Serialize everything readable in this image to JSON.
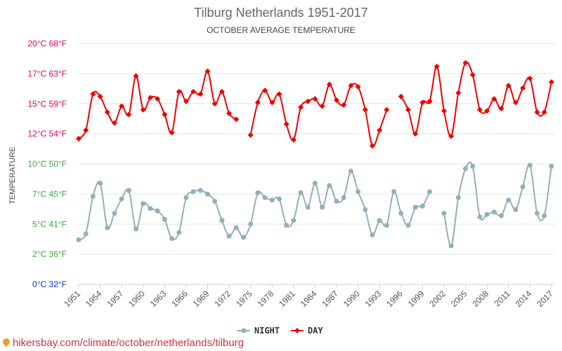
{
  "title": "Tilburg Netherlands 1951-2017",
  "subtitle": "OCTOBER AVERAGE TEMPERATURE",
  "footer": "hikersbay.com/climate/october/netherlands/tilburg",
  "chart_data": {
    "type": "line",
    "title": "Tilburg Netherlands 1951-2017",
    "subtitle": "OCTOBER AVERAGE TEMPERATURE",
    "ylabel": "TEMPERATURE",
    "xlim": [
      1951,
      2017
    ],
    "ylim": [
      0,
      20
    ],
    "grid": true,
    "legend_position": "bottom",
    "y_ticks": [
      {
        "value": 0,
        "label": "0°C 32°F",
        "color": "#0033cc"
      },
      {
        "value": 2.5,
        "label": "2°C 36°F",
        "color": "#33aa33"
      },
      {
        "value": 5,
        "label": "5°C 41°F",
        "color": "#33aa33"
      },
      {
        "value": 7.5,
        "label": "7°C 45°F",
        "color": "#33aa33"
      },
      {
        "value": 10,
        "label": "10°C 50°F",
        "color": "#33aa33"
      },
      {
        "value": 12.5,
        "label": "12°C 54°F",
        "color": "#dd0055"
      },
      {
        "value": 15,
        "label": "15°C 59°F",
        "color": "#dd0055"
      },
      {
        "value": 17.5,
        "label": "17°C 63°F",
        "color": "#dd0055"
      },
      {
        "value": 20,
        "label": "20°C 68°F",
        "color": "#dd0055"
      }
    ],
    "x_ticks": [
      "1951",
      "1954",
      "1957",
      "1960",
      "1963",
      "1966",
      "1969",
      "1972",
      "1975",
      "1978",
      "1981",
      "1984",
      "1987",
      "1990",
      "1993",
      "1996",
      "1999",
      "2002",
      "2005",
      "2008",
      "2011",
      "2014",
      "2017"
    ],
    "series": [
      {
        "name": "NIGHT",
        "color": "#93b0b8",
        "marker": "circle",
        "points": [
          [
            1951,
            3.7
          ],
          [
            1952,
            4.2
          ],
          [
            1953,
            7.3
          ],
          [
            1954,
            8.4
          ],
          [
            1955,
            4.7
          ],
          [
            1956,
            5.9
          ],
          [
            1957,
            7.1
          ],
          [
            1958,
            7.8
          ],
          [
            1959,
            4.6
          ],
          [
            1960,
            6.7
          ],
          [
            1961,
            6.3
          ],
          [
            1962,
            6.1
          ],
          [
            1963,
            5.4
          ],
          [
            1964,
            3.8
          ],
          [
            1965,
            4.3
          ],
          [
            1966,
            7.2
          ],
          [
            1967,
            7.7
          ],
          [
            1968,
            7.8
          ],
          [
            1969,
            7.5
          ],
          [
            1970,
            6.9
          ],
          [
            1971,
            5.3
          ],
          [
            1972,
            4.0
          ],
          [
            1973,
            4.7
          ],
          [
            1974,
            3.9
          ],
          [
            1975,
            5.0
          ],
          [
            1976,
            7.6
          ],
          [
            1977,
            7.2
          ],
          [
            1978,
            7.0
          ],
          [
            1979,
            7.1
          ],
          [
            1980,
            4.9
          ],
          [
            1981,
            5.3
          ],
          [
            1982,
            7.6
          ],
          [
            1983,
            6.4
          ],
          [
            1984,
            8.4
          ],
          [
            1985,
            6.4
          ],
          [
            1986,
            8.2
          ],
          [
            1987,
            6.9
          ],
          [
            1988,
            7.2
          ],
          [
            1989,
            9.4
          ],
          [
            1990,
            7.7
          ],
          [
            1991,
            6.2
          ],
          [
            1992,
            4.1
          ],
          [
            1993,
            5.3
          ],
          [
            1994,
            4.9
          ],
          [
            1995,
            7.7
          ],
          [
            1996,
            5.9
          ],
          [
            1997,
            4.9
          ],
          [
            1998,
            6.4
          ],
          [
            1999,
            6.5
          ],
          [
            2000,
            7.7
          ],
          [
            2002,
            5.9
          ],
          [
            2003,
            3.2
          ],
          [
            2004,
            7.2
          ],
          [
            2005,
            9.6
          ],
          [
            2006,
            9.8
          ],
          [
            2007,
            5.6
          ],
          [
            2008,
            5.8
          ],
          [
            2009,
            6.0
          ],
          [
            2010,
            5.7
          ],
          [
            2011,
            7.0
          ],
          [
            2012,
            6.2
          ],
          [
            2013,
            8.1
          ],
          [
            2014,
            9.9
          ],
          [
            2015,
            5.9
          ],
          [
            2016,
            5.7
          ],
          [
            2017,
            9.8
          ]
        ]
      },
      {
        "name": "DAY",
        "color": "#ee0000",
        "marker": "diamond",
        "points": [
          [
            1951,
            12.1
          ],
          [
            1952,
            12.8
          ],
          [
            1953,
            15.8
          ],
          [
            1954,
            15.6
          ],
          [
            1955,
            14.3
          ],
          [
            1956,
            13.4
          ],
          [
            1957,
            14.8
          ],
          [
            1958,
            14.1
          ],
          [
            1959,
            17.3
          ],
          [
            1960,
            14.5
          ],
          [
            1961,
            15.5
          ],
          [
            1962,
            15.4
          ],
          [
            1963,
            14.1
          ],
          [
            1964,
            12.6
          ],
          [
            1965,
            16.0
          ],
          [
            1966,
            15.2
          ],
          [
            1967,
            16.0
          ],
          [
            1968,
            15.8
          ],
          [
            1969,
            17.7
          ],
          [
            1970,
            15.0
          ],
          [
            1971,
            16.0
          ],
          [
            1972,
            14.2
          ],
          [
            1973,
            13.7
          ],
          [
            1975,
            12.4
          ],
          [
            1976,
            15.1
          ],
          [
            1977,
            16.1
          ],
          [
            1978,
            15.1
          ],
          [
            1979,
            15.8
          ],
          [
            1980,
            13.3
          ],
          [
            1981,
            12.0
          ],
          [
            1982,
            14.7
          ],
          [
            1983,
            15.2
          ],
          [
            1984,
            15.4
          ],
          [
            1985,
            14.8
          ],
          [
            1986,
            16.6
          ],
          [
            1987,
            15.3
          ],
          [
            1988,
            14.9
          ],
          [
            1989,
            16.5
          ],
          [
            1990,
            16.4
          ],
          [
            1991,
            14.5
          ],
          [
            1992,
            11.5
          ],
          [
            1993,
            12.8
          ],
          [
            1994,
            14.5
          ],
          [
            1996,
            15.6
          ],
          [
            1997,
            14.5
          ],
          [
            1998,
            12.5
          ],
          [
            1999,
            15.1
          ],
          [
            2000,
            15.2
          ],
          [
            2001,
            18.1
          ],
          [
            2002,
            14.4
          ],
          [
            2003,
            12.3
          ],
          [
            2004,
            15.9
          ],
          [
            2005,
            18.4
          ],
          [
            2006,
            17.4
          ],
          [
            2007,
            14.5
          ],
          [
            2008,
            14.4
          ],
          [
            2009,
            15.4
          ],
          [
            2010,
            14.6
          ],
          [
            2011,
            16.5
          ],
          [
            2012,
            15.1
          ],
          [
            2013,
            16.3
          ],
          [
            2014,
            17.1
          ],
          [
            2015,
            14.3
          ],
          [
            2016,
            14.3
          ],
          [
            2017,
            16.8
          ]
        ]
      }
    ]
  }
}
